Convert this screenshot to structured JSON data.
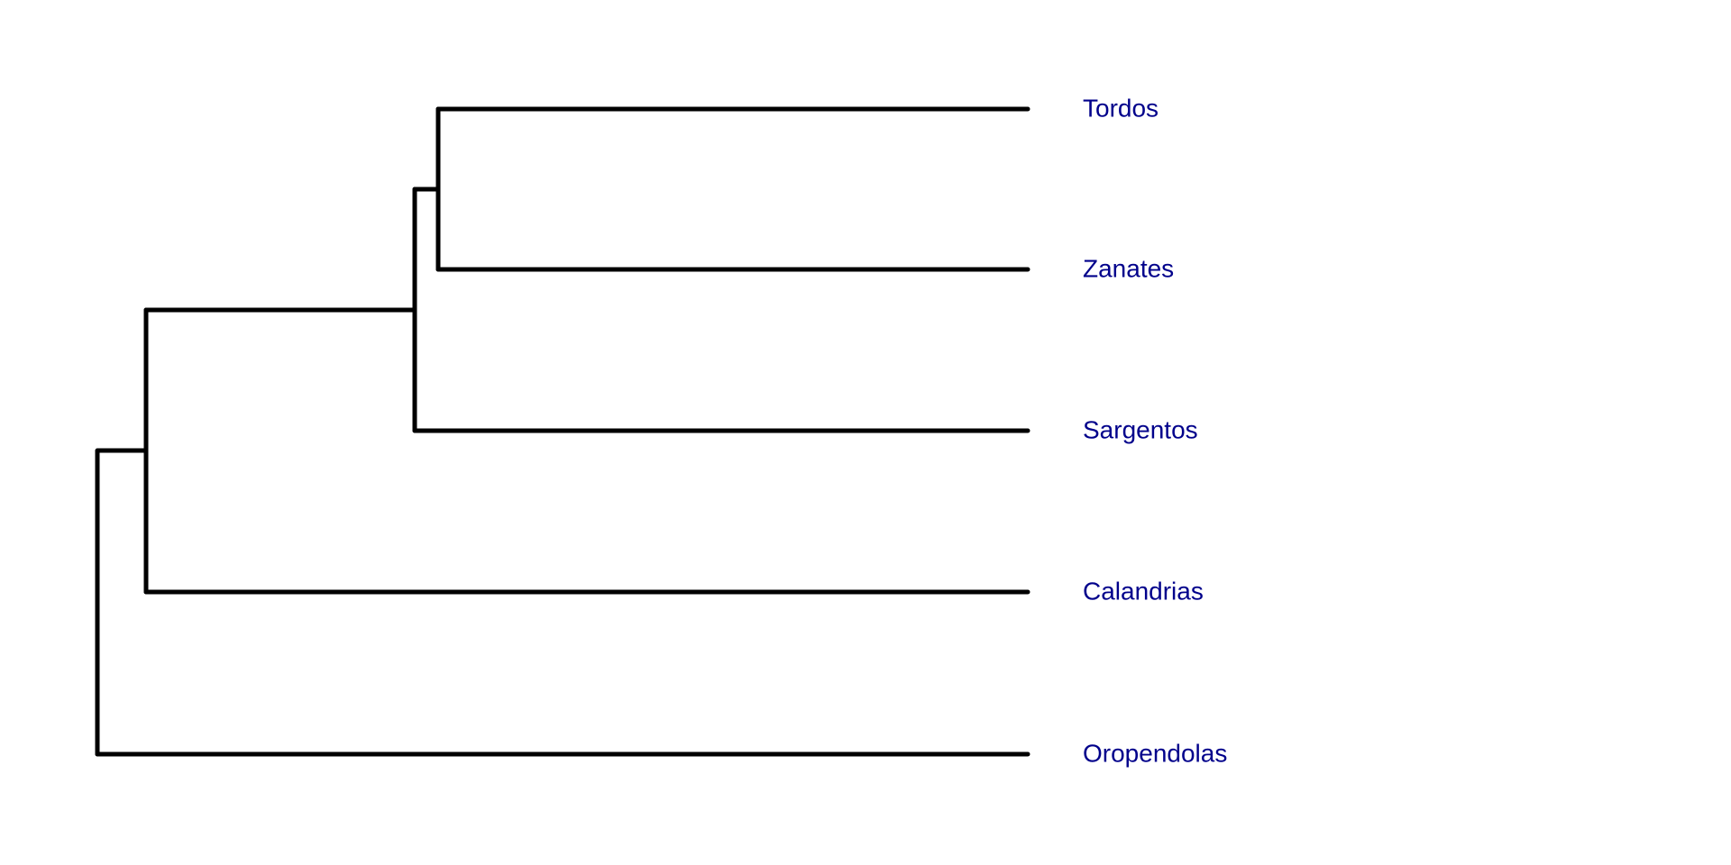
{
  "tree": {
    "type": "phylogram",
    "label_color": "#00008b",
    "branch_color": "#000000",
    "tips": [
      {
        "id": "tordos",
        "label": "Tordos"
      },
      {
        "id": "zanates",
        "label": "Zanates"
      },
      {
        "id": "sargentos",
        "label": "Sargentos"
      },
      {
        "id": "calandrias",
        "label": "Calandrias"
      },
      {
        "id": "oropendolas",
        "label": "Oropendolas"
      }
    ]
  }
}
